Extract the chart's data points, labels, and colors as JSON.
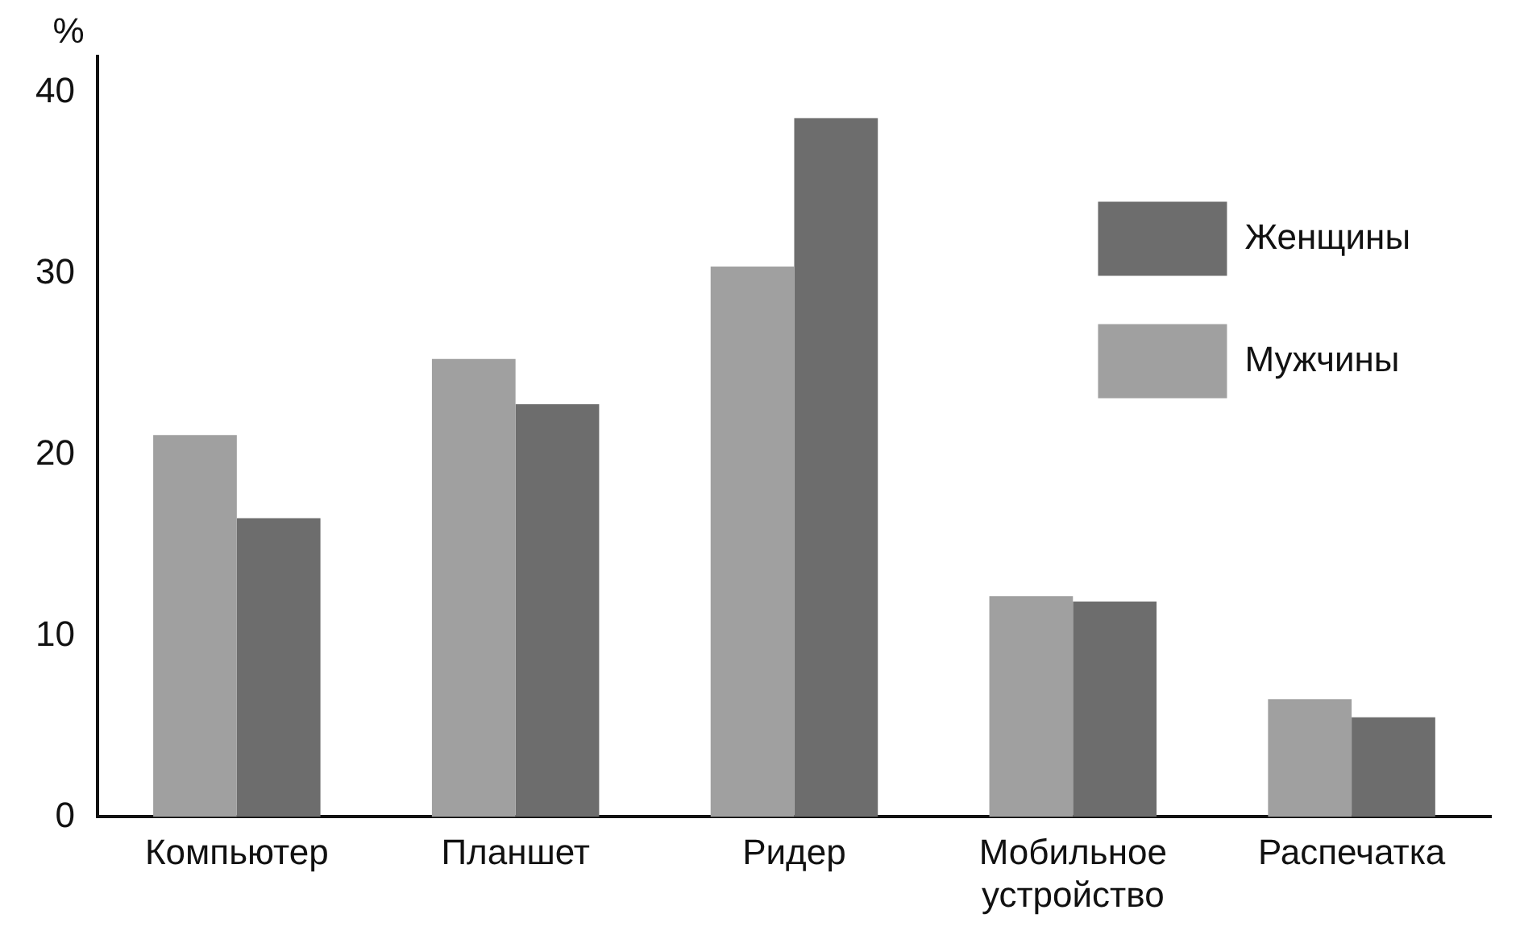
{
  "chart_data": {
    "type": "bar",
    "ylabel": "%",
    "categories": [
      "Компьютер",
      "Планшет",
      "Ридер",
      "Мобильное устройство",
      "Распечатка"
    ],
    "series": [
      {
        "name": "Мужчины",
        "color": "#a0a0a0",
        "values": [
          21.1,
          25.3,
          30.4,
          12.2,
          6.5
        ]
      },
      {
        "name": "Женщины",
        "color": "#6d6d6d",
        "values": [
          16.5,
          22.8,
          38.6,
          11.9,
          5.5
        ]
      }
    ],
    "ylim": [
      0,
      42
    ],
    "yticks": [
      0,
      10,
      20,
      30,
      40
    ],
    "grid": false,
    "legend": "top right"
  }
}
